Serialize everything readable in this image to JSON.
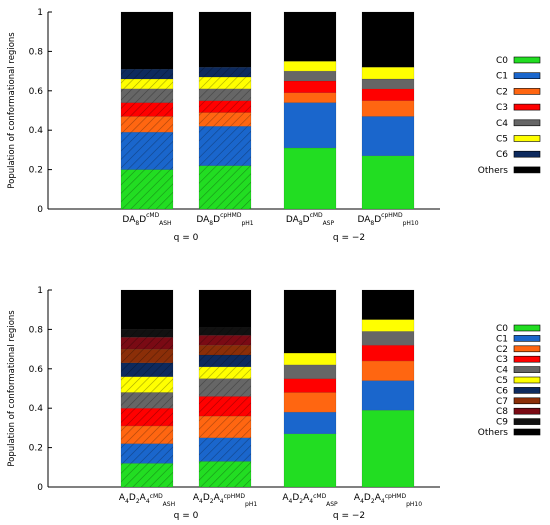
{
  "palette": {
    "C0": "#22dd22",
    "C1": "#1a66cc",
    "C2": "#ff6611",
    "C3": "#ff0000",
    "C4": "#666666",
    "C5": "#ffff00",
    "C6": "#0d2a5e",
    "C7": "#8b2e08",
    "C8": "#7a0a14",
    "C9": "#111111",
    "Others": "#000000"
  },
  "chart_data": [
    {
      "type": "bar",
      "stacked": true,
      "ylabel": "Population of conformational regions",
      "ylim": [
        0,
        1
      ],
      "yticks": [
        "0",
        "0.2",
        "0.4",
        "0.6",
        "0.8",
        "1"
      ],
      "group_labels": [
        "q = 0",
        "q = −2"
      ],
      "legend": [
        "C0",
        "C1",
        "C2",
        "C3",
        "C4",
        "C5",
        "C6",
        "Others"
      ],
      "categories": [
        {
          "base": "DA",
          "sub1": "8",
          "mid": "D",
          "sup": "cMD",
          "sub": "ASH",
          "hatched": true,
          "values": [
            0.2,
            0.19,
            0.08,
            0.07,
            0.07,
            0.05,
            0.05,
            0.29
          ]
        },
        {
          "base": "DA",
          "sub1": "8",
          "mid": "D",
          "sup": "cpHMD",
          "sub": "pH1",
          "hatched": true,
          "values": [
            0.22,
            0.2,
            0.07,
            0.06,
            0.06,
            0.06,
            0.05,
            0.28
          ]
        },
        {
          "base": "DA",
          "sub1": "8",
          "mid": "D",
          "sup": "cMD",
          "sub": "ASP",
          "hatched": false,
          "values": [
            0.31,
            0.23,
            0.05,
            0.06,
            0.05,
            0.05,
            0.0,
            0.25
          ]
        },
        {
          "base": "DA",
          "sub1": "8",
          "mid": "D",
          "sup": "cpHMD",
          "sub": "pH10",
          "hatched": false,
          "values": [
            0.27,
            0.2,
            0.08,
            0.06,
            0.05,
            0.06,
            0.0,
            0.28
          ]
        }
      ]
    },
    {
      "type": "bar",
      "stacked": true,
      "ylabel": "Population of conformational regions",
      "ylim": [
        0,
        1
      ],
      "yticks": [
        "0",
        "0.2",
        "0.4",
        "0.6",
        "0.8",
        "1"
      ],
      "group_labels": [
        "q = 0",
        "q = −2"
      ],
      "legend": [
        "C0",
        "C1",
        "C2",
        "C3",
        "C4",
        "C5",
        "C6",
        "C7",
        "C8",
        "C9",
        "Others"
      ],
      "categories": [
        {
          "base": "A",
          "sub1": "4",
          "mid": "D",
          "sub2": "2",
          "tail": "A",
          "sub3": "4",
          "sup": "cMD",
          "sub": "ASH",
          "hatched": true,
          "values": [
            0.12,
            0.1,
            0.09,
            0.09,
            0.08,
            0.08,
            0.07,
            0.07,
            0.06,
            0.04,
            0.2
          ]
        },
        {
          "base": "A",
          "sub1": "4",
          "mid": "D",
          "sub2": "2",
          "tail": "A",
          "sub3": "4",
          "sup": "cpHMD",
          "sub": "pH1",
          "hatched": true,
          "values": [
            0.13,
            0.12,
            0.11,
            0.1,
            0.09,
            0.06,
            0.06,
            0.05,
            0.05,
            0.04,
            0.19
          ]
        },
        {
          "base": "A",
          "sub1": "4",
          "mid": "D",
          "sub2": "2",
          "tail": "A",
          "sub3": "4",
          "sup": "cMD",
          "sub": "ASP",
          "hatched": false,
          "values": [
            0.27,
            0.11,
            0.1,
            0.07,
            0.07,
            0.06,
            0.0,
            0.0,
            0.0,
            0.0,
            0.32
          ]
        },
        {
          "base": "A",
          "sub1": "4",
          "mid": "D",
          "sub2": "2",
          "tail": "A",
          "sub3": "4",
          "sup": "cpHMD",
          "sub": "pH10",
          "hatched": false,
          "values": [
            0.39,
            0.15,
            0.1,
            0.08,
            0.07,
            0.06,
            0.0,
            0.0,
            0.0,
            0.0,
            0.15
          ]
        }
      ]
    }
  ]
}
